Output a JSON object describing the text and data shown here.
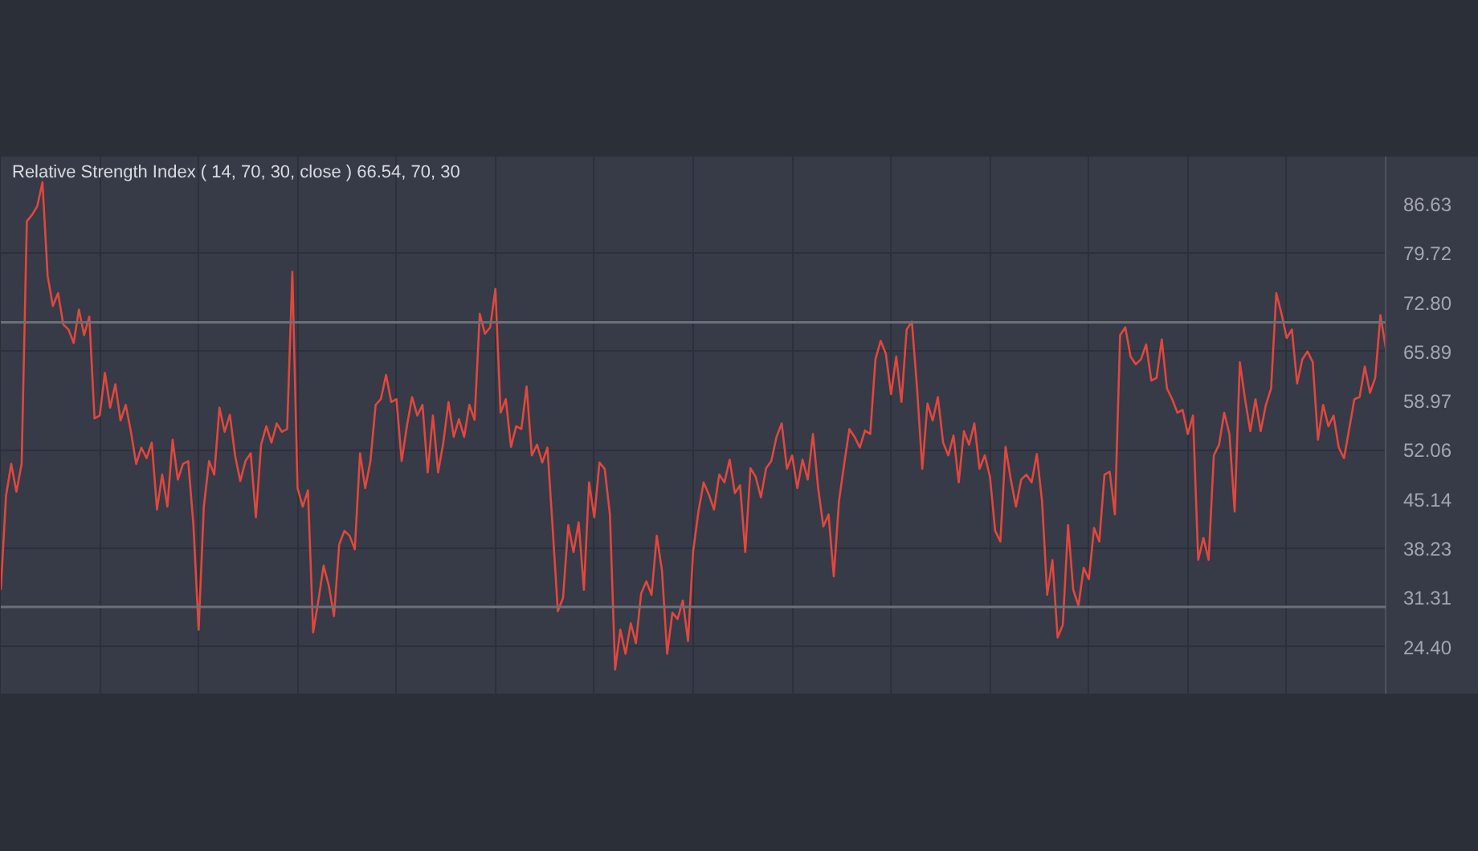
{
  "chart_data": {
    "type": "line",
    "title": "Relative Strength Index ( 14, 70, 30, close ) 66.54, 70, 30",
    "categories": [
      null,
      null,
      null,
      null,
      null,
      null,
      null,
      null,
      null,
      null,
      null,
      null,
      null,
      null,
      null,
      null,
      null,
      null,
      null,
      null,
      null,
      null,
      null,
      null,
      null,
      null,
      null,
      null,
      null,
      null,
      null,
      null,
      null,
      null,
      null,
      null,
      null,
      null,
      null,
      null,
      null,
      null,
      null,
      null,
      null,
      null,
      null,
      null,
      null,
      null,
      null,
      null,
      null,
      null,
      null,
      null,
      null,
      null,
      null,
      null,
      null,
      null,
      null,
      null,
      null,
      null,
      null,
      null,
      null,
      null,
      null,
      null,
      null,
      null,
      null,
      null,
      null,
      null,
      null,
      null,
      null,
      null,
      null,
      null,
      null,
      null,
      null,
      null,
      null,
      null,
      null,
      null,
      null,
      null,
      null,
      null,
      null,
      null,
      null,
      null,
      null,
      null,
      null,
      null,
      null,
      null,
      null,
      null,
      null,
      null,
      null,
      null,
      null,
      null,
      null,
      null,
      null,
      null,
      null,
      null,
      null,
      null,
      null,
      null,
      null,
      null,
      null,
      null,
      null,
      null,
      null,
      null,
      null,
      null,
      null,
      null,
      null,
      null,
      null,
      null,
      null,
      null,
      null,
      null,
      null,
      null,
      null,
      null,
      null,
      null,
      null,
      null,
      null,
      null,
      null,
      null,
      null,
      null,
      null,
      null,
      null,
      null,
      null,
      null,
      null,
      null,
      null,
      null,
      null,
      null,
      null,
      null,
      null,
      null,
      null,
      null,
      null,
      null,
      null,
      null,
      null,
      null,
      null,
      null,
      null,
      null,
      null,
      null,
      null,
      null,
      null,
      null,
      null,
      null,
      null,
      null,
      null,
      null,
      null,
      null,
      null,
      null,
      null,
      null,
      null,
      null,
      null,
      null,
      null,
      null,
      null,
      null,
      null,
      null,
      null,
      null,
      null,
      null,
      null,
      null,
      null,
      null,
      null,
      null,
      null,
      null,
      null,
      null,
      null,
      null,
      null,
      null,
      null,
      null,
      null,
      null,
      null,
      null,
      null,
      null,
      null,
      null,
      null,
      null,
      null,
      null,
      null,
      null,
      null,
      null,
      null,
      null,
      null,
      null,
      null,
      null,
      null,
      null,
      null,
      null,
      null,
      null,
      null,
      null,
      null,
      null,
      null
    ],
    "series": [
      {
        "color": "#e0483e",
        "values": [
          32.4,
          45.6,
          50.1,
          46.2,
          50.1,
          84.2,
          85.1,
          86.3,
          89.7,
          76.5,
          72.3,
          74.1,
          69.7,
          69.0,
          67.1,
          71.8,
          68.2,
          70.8,
          56.5,
          56.9,
          62.9,
          58.0,
          61.3,
          56.2,
          58.4,
          54.6,
          50.1,
          52.4,
          50.9,
          53.1,
          43.7,
          48.6,
          44.1,
          53.5,
          47.9,
          50.1,
          50.5,
          41.5,
          26.8,
          44.1,
          50.5,
          48.6,
          58.0,
          54.6,
          57.0,
          51.3,
          47.7,
          50.5,
          51.6,
          42.6,
          52.8,
          55.4,
          53.1,
          55.8,
          54.6,
          55.0,
          77.1,
          46.7,
          44.1,
          46.4,
          26.4,
          30.9,
          35.8,
          33.0,
          28.7,
          38.8,
          40.7,
          40.0,
          38.1,
          51.6,
          46.7,
          50.5,
          58.4,
          59.2,
          62.6,
          58.8,
          59.2,
          50.5,
          55.4,
          59.5,
          56.9,
          58.4,
          48.9,
          56.9,
          48.9,
          53.1,
          58.8,
          53.9,
          56.4,
          53.9,
          58.4,
          56.3,
          71.2,
          68.4,
          69.3,
          74.7,
          57.3,
          59.2,
          52.5,
          55.4,
          55.0,
          61.0,
          51.3,
          52.8,
          50.3,
          52.4,
          41.1,
          29.4,
          31.3,
          41.5,
          37.7,
          41.9,
          32.4,
          47.5,
          42.6,
          50.3,
          49.4,
          43.0,
          21.2,
          26.8,
          23.4,
          27.7,
          24.9,
          31.9,
          33.6,
          31.7,
          40.0,
          35.1,
          23.4,
          29.2,
          28.3,
          30.9,
          25.2,
          37.9,
          43.4,
          47.5,
          45.8,
          43.7,
          48.6,
          47.5,
          50.7,
          46.0,
          47.1,
          37.7,
          49.5,
          48.3,
          45.4,
          49.5,
          50.5,
          53.9,
          55.8,
          49.4,
          51.3,
          46.7,
          50.7,
          47.9,
          54.3,
          46.7,
          41.3,
          43.0,
          34.3,
          44.9,
          50.1,
          55.0,
          53.9,
          52.4,
          54.8,
          54.3,
          64.8,
          67.4,
          65.6,
          59.9,
          65.2,
          58.8,
          69.0,
          70.1,
          60.7,
          49.4,
          58.6,
          56.2,
          59.5,
          53.1,
          51.3,
          54.1,
          47.5,
          54.7,
          52.8,
          55.8,
          49.4,
          51.3,
          48.3,
          40.7,
          39.2,
          52.5,
          47.9,
          44.1,
          47.9,
          48.6,
          47.5,
          51.5,
          44.9,
          31.7,
          36.6,
          25.7,
          27.5,
          41.5,
          32.4,
          30.2,
          35.5,
          33.9,
          41.1,
          39.2,
          48.6,
          49.0,
          43.0,
          68.2,
          69.3,
          65.2,
          64.1,
          64.8,
          66.9,
          61.8,
          62.2,
          67.6,
          60.7,
          59.2,
          57.3,
          57.7,
          54.3,
          56.9,
          36.6,
          39.7,
          36.6,
          51.3,
          52.8,
          57.3,
          54.3,
          43.4,
          64.4,
          59.2,
          54.7,
          59.2,
          54.7,
          58.4,
          60.7,
          74.1,
          71.2,
          67.8,
          69.0,
          61.4,
          64.8,
          65.9,
          64.4,
          53.5,
          58.4,
          55.4,
          56.9,
          52.4,
          50.9,
          55.0,
          59.2,
          59.5,
          63.8,
          60.1,
          62.2,
          71.0,
          66.5
        ]
      }
    ],
    "ylim": [
      17.7,
      93.3
    ],
    "yticks": [
      {
        "value": 86.63,
        "label": "86.63"
      },
      {
        "value": 79.72,
        "label": "79.72"
      },
      {
        "value": 72.8,
        "label": "72.80"
      },
      {
        "value": 65.89,
        "label": "65.89"
      },
      {
        "value": 58.97,
        "label": "58.97"
      },
      {
        "value": 52.06,
        "label": "52.06"
      },
      {
        "value": 45.14,
        "label": "45.14"
      },
      {
        "value": 38.23,
        "label": "38.23"
      },
      {
        "value": 31.31,
        "label": "31.31"
      },
      {
        "value": 24.4,
        "label": "24.40"
      }
    ],
    "ref_lines": [
      {
        "axis": "y",
        "value": 70,
        "color": "#6e7078"
      },
      {
        "axis": "y",
        "value": 30,
        "color": "#6e7078"
      }
    ],
    "grid": true,
    "tick_labels": "y",
    "marker": "none",
    "line_style": "solid"
  }
}
